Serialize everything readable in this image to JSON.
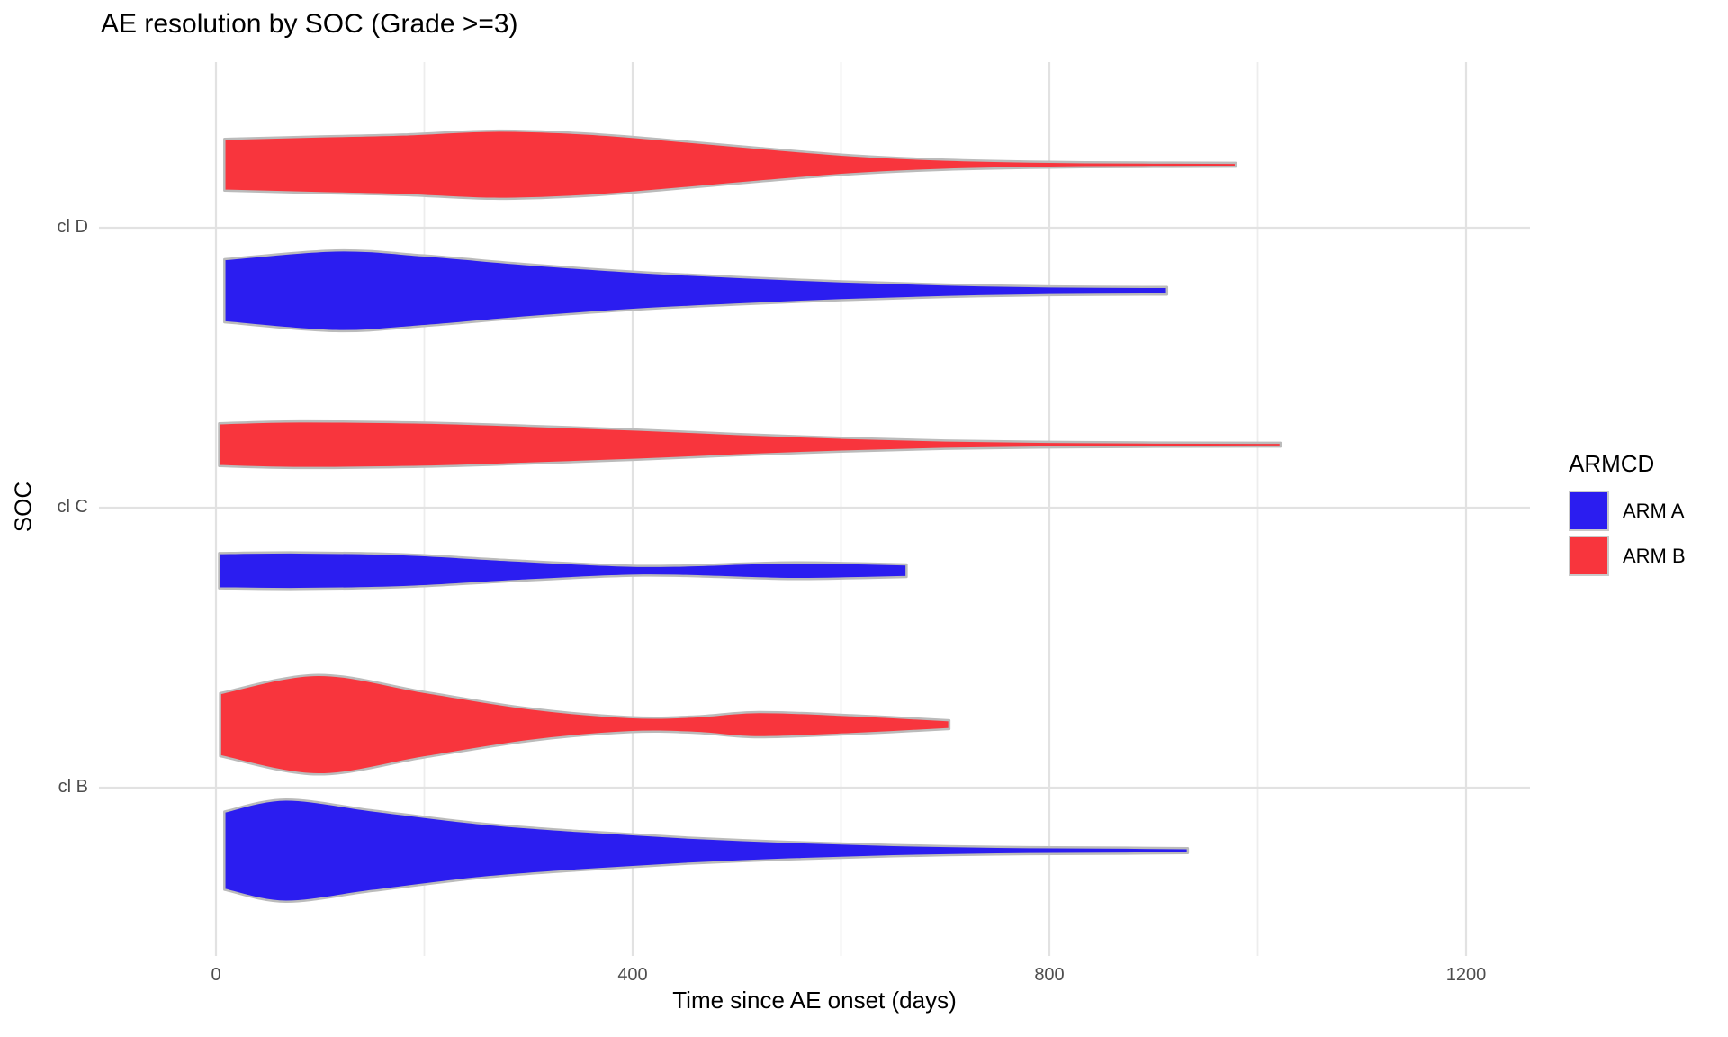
{
  "title": "AE resolution by SOC (Grade >=3)",
  "axes": {
    "x": {
      "title": "Time since AE onset (days)",
      "ticks": [
        {
          "value": 0,
          "label": "0"
        },
        {
          "value": 400,
          "label": "400"
        },
        {
          "value": 800,
          "label": "800"
        },
        {
          "value": 1200,
          "label": "1200"
        }
      ],
      "minor_ticks": [
        200,
        600,
        1000
      ],
      "range": [
        -112,
        1262
      ]
    },
    "y": {
      "title": "SOC",
      "categories": [
        "cl D",
        "cl C",
        "cl B"
      ]
    }
  },
  "legend": {
    "title": "ARMCD",
    "items": [
      {
        "label": "ARM A",
        "color": "#2B1DF0"
      },
      {
        "label": "ARM B",
        "color": "#F8353D"
      }
    ]
  },
  "colors": {
    "outline": "#BBBBBB",
    "grid_major": "#E2E2E2",
    "grid_minor": "#EDEDED",
    "tick_text": "#4D4D4D"
  },
  "chart_data": {
    "type": "violin",
    "orientation": "horizontal",
    "title": "AE resolution by SOC (Grade >=3)",
    "xlabel": "Time since AE onset (days)",
    "ylabel": "SOC",
    "categories": [
      "cl D",
      "cl C",
      "cl B"
    ],
    "grid": true,
    "legend_position": "right",
    "series": [
      {
        "soc": "cl D",
        "arm": "ARM B",
        "min_day": 8,
        "max_day": 979,
        "profile": [
          [
            8,
            0.41
          ],
          [
            100,
            0.45
          ],
          [
            180,
            0.48
          ],
          [
            267,
            0.54
          ],
          [
            350,
            0.5
          ],
          [
            430,
            0.4
          ],
          [
            520,
            0.27
          ],
          [
            610,
            0.15
          ],
          [
            700,
            0.08
          ],
          [
            800,
            0.045
          ],
          [
            900,
            0.035
          ],
          [
            979,
            0.03
          ]
        ]
      },
      {
        "soc": "cl D",
        "arm": "ARM A",
        "min_day": 8,
        "max_day": 913,
        "profile": [
          [
            8,
            0.5
          ],
          [
            115,
            0.64
          ],
          [
            200,
            0.56
          ],
          [
            300,
            0.42
          ],
          [
            404,
            0.3
          ],
          [
            500,
            0.22
          ],
          [
            600,
            0.15
          ],
          [
            700,
            0.1
          ],
          [
            800,
            0.07
          ],
          [
            913,
            0.06
          ]
        ]
      },
      {
        "soc": "cl C",
        "arm": "ARM B",
        "min_day": 3,
        "max_day": 1022,
        "profile": [
          [
            3,
            0.34
          ],
          [
            80,
            0.37
          ],
          [
            200,
            0.35
          ],
          [
            300,
            0.3
          ],
          [
            404,
            0.24
          ],
          [
            500,
            0.17
          ],
          [
            600,
            0.11
          ],
          [
            700,
            0.065
          ],
          [
            800,
            0.045
          ],
          [
            900,
            0.035
          ],
          [
            1022,
            0.03
          ]
        ]
      },
      {
        "soc": "cl C",
        "arm": "ARM A",
        "min_day": 3,
        "max_day": 663,
        "profile": [
          [
            3,
            0.28
          ],
          [
            80,
            0.29
          ],
          [
            180,
            0.26
          ],
          [
            280,
            0.17
          ],
          [
            380,
            0.09
          ],
          [
            440,
            0.08
          ],
          [
            542,
            0.13
          ],
          [
            610,
            0.12
          ],
          [
            663,
            0.1
          ]
        ]
      },
      {
        "soc": "cl B",
        "arm": "ARM B",
        "min_day": 4,
        "max_day": 704,
        "profile": [
          [
            4,
            0.5
          ],
          [
            98,
            0.79
          ],
          [
            200,
            0.52
          ],
          [
            300,
            0.26
          ],
          [
            397,
            0.12
          ],
          [
            460,
            0.13
          ],
          [
            521,
            0.2
          ],
          [
            610,
            0.15
          ],
          [
            704,
            0.07
          ]
        ]
      },
      {
        "soc": "cl B",
        "arm": "ARM A",
        "min_day": 8,
        "max_day": 933,
        "profile": [
          [
            8,
            0.62
          ],
          [
            67,
            0.81
          ],
          [
            150,
            0.64
          ],
          [
            250,
            0.44
          ],
          [
            350,
            0.31
          ],
          [
            450,
            0.21
          ],
          [
            550,
            0.14
          ],
          [
            650,
            0.09
          ],
          [
            750,
            0.06
          ],
          [
            850,
            0.05
          ],
          [
            933,
            0.04
          ]
        ]
      }
    ]
  }
}
